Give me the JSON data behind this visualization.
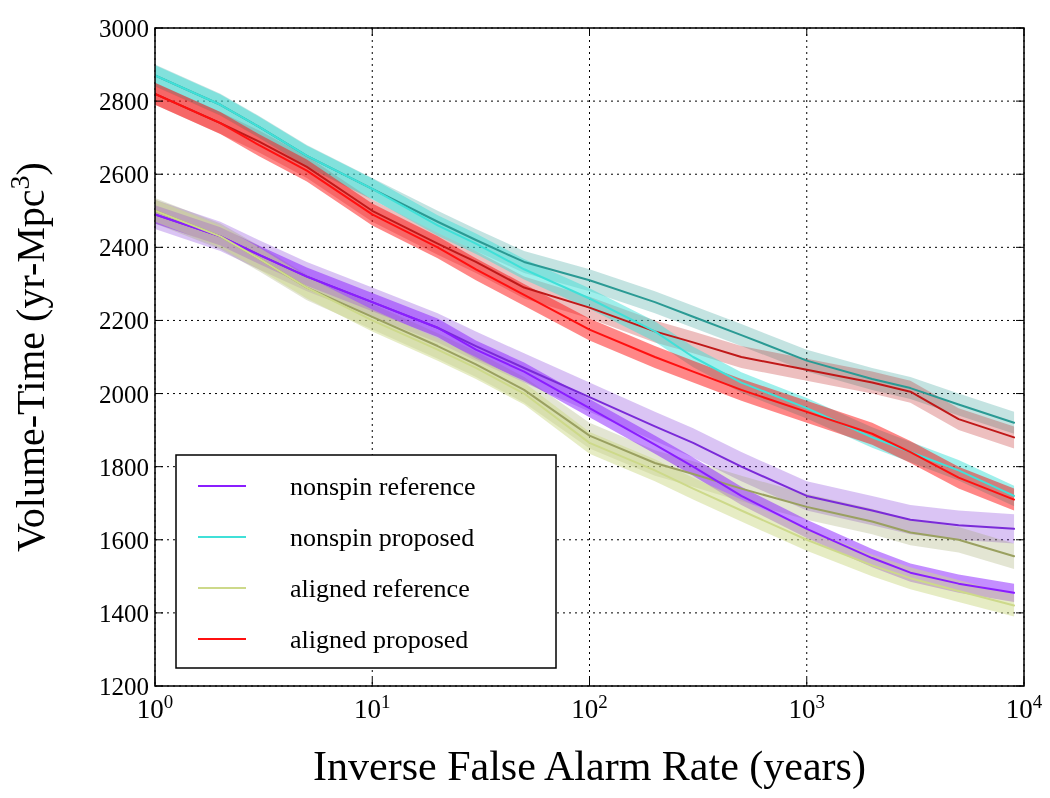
{
  "chart_data": {
    "type": "line",
    "xlabel": "Inverse False Alarm Rate (years)",
    "ylabel": "Volume-Time (yr-Mpc$^{3}$)",
    "log": "x",
    "grid": true,
    "legend": "bottom left",
    "line_style": "solid",
    "xlim": [
      1,
      10000
    ],
    "ylim": [
      1200,
      3000
    ],
    "xticks": [
      {
        "value": 1,
        "label": "10$^{0}$"
      },
      {
        "value": 10,
        "label": "10$^{1}$"
      },
      {
        "value": 100,
        "label": "10$^{2}$"
      },
      {
        "value": 1000,
        "label": "10$^{3}$"
      },
      {
        "value": 10000,
        "label": "10$^{4}$"
      }
    ],
    "yticks": [
      1200,
      1400,
      1600,
      1800,
      2000,
      2200,
      2400,
      2600,
      2800,
      3000
    ],
    "x": [
      1,
      2,
      3,
      5,
      10,
      20,
      30,
      50,
      100,
      200,
      300,
      500,
      1000,
      2000,
      3000,
      5000,
      9000
    ],
    "series": [
      {
        "color": "#7a2ad8",
        "values": [
          2490,
          2430,
          2380,
          2320,
          2250,
          2180,
          2130,
          2070,
          1990,
          1910,
          1865,
          1800,
          1720,
          1680,
          1655,
          1640,
          1630
        ],
        "lower": [
          2450,
          2390,
          2340,
          2280,
          2210,
          2140,
          2090,
          2030,
          1950,
          1870,
          1825,
          1760,
          1680,
          1640,
          1615,
          1600,
          1590
        ],
        "upper": [
          2530,
          2470,
          2420,
          2360,
          2290,
          2220,
          2170,
          2110,
          2030,
          1950,
          1905,
          1840,
          1760,
          1720,
          1695,
          1680,
          1670
        ]
      },
      {
        "color": "#2a9a94",
        "values": [
          2870,
          2790,
          2730,
          2650,
          2560,
          2470,
          2420,
          2360,
          2310,
          2250,
          2210,
          2160,
          2090,
          2040,
          2015,
          1970,
          1920
        ],
        "lower": [
          2840,
          2760,
          2700,
          2620,
          2530,
          2440,
          2390,
          2330,
          2280,
          2220,
          2180,
          2130,
          2060,
          2010,
          1985,
          1940,
          1890
        ],
        "upper": [
          2900,
          2820,
          2760,
          2680,
          2590,
          2500,
          2450,
          2390,
          2340,
          2280,
          2240,
          2190,
          2120,
          2070,
          2045,
          2000,
          1950
        ]
      },
      {
        "color": "#9aa060",
        "values": [
          2500,
          2430,
          2370,
          2290,
          2210,
          2130,
          2080,
          2010,
          1885,
          1810,
          1780,
          1740,
          1690,
          1650,
          1620,
          1600,
          1555
        ],
        "lower": [
          2465,
          2395,
          2335,
          2255,
          2175,
          2095,
          2045,
          1975,
          1850,
          1775,
          1745,
          1705,
          1655,
          1615,
          1585,
          1565,
          1520
        ],
        "upper": [
          2535,
          2465,
          2405,
          2325,
          2245,
          2165,
          2115,
          2045,
          1920,
          1845,
          1815,
          1775,
          1725,
          1685,
          1655,
          1635,
          1590
        ]
      },
      {
        "color": "#c01818",
        "values": [
          2820,
          2740,
          2690,
          2620,
          2500,
          2410,
          2360,
          2290,
          2235,
          2170,
          2140,
          2100,
          2065,
          2030,
          2005,
          1930,
          1880
        ],
        "lower": [
          2790,
          2710,
          2660,
          2590,
          2470,
          2380,
          2330,
          2260,
          2205,
          2140,
          2110,
          2070,
          2035,
          2000,
          1975,
          1900,
          1850
        ],
        "upper": [
          2850,
          2770,
          2720,
          2650,
          2530,
          2440,
          2390,
          2320,
          2265,
          2200,
          2170,
          2130,
          2095,
          2060,
          2035,
          1960,
          1910
        ]
      },
      {
        "name": "nonspin reference",
        "color": "#8a1eff",
        "values": [
          2490,
          2430,
          2380,
          2320,
          2250,
          2180,
          2120,
          2060,
          1960,
          1860,
          1800,
          1720,
          1630,
          1550,
          1510,
          1480,
          1455
        ],
        "lower": [
          2465,
          2405,
          2355,
          2295,
          2225,
          2155,
          2095,
          2035,
          1935,
          1835,
          1775,
          1695,
          1605,
          1525,
          1485,
          1455,
          1430
        ],
        "upper": [
          2515,
          2455,
          2405,
          2345,
          2275,
          2205,
          2145,
          2085,
          1985,
          1885,
          1825,
          1745,
          1655,
          1575,
          1535,
          1505,
          1480
        ]
      },
      {
        "name": "nonspin proposed",
        "color": "#40e0d8",
        "values": [
          2870,
          2790,
          2730,
          2650,
          2560,
          2460,
          2410,
          2340,
          2260,
          2170,
          2100,
          2030,
          1960,
          1880,
          1840,
          1790,
          1720
        ],
        "lower": [
          2842,
          2762,
          2702,
          2622,
          2532,
          2432,
          2382,
          2312,
          2232,
          2142,
          2072,
          2002,
          1932,
          1852,
          1812,
          1762,
          1692
        ],
        "upper": [
          2898,
          2818,
          2758,
          2678,
          2588,
          2488,
          2438,
          2368,
          2288,
          2198,
          2128,
          2058,
          1988,
          1908,
          1868,
          1818,
          1748
        ]
      },
      {
        "name": "aligned reference",
        "color": "#cdd98a",
        "values": [
          2500,
          2430,
          2370,
          2290,
          2200,
          2120,
          2070,
          2000,
          1865,
          1790,
          1740,
          1680,
          1600,
          1530,
          1495,
          1460,
          1420
        ],
        "lower": [
          2470,
          2400,
          2340,
          2260,
          2170,
          2090,
          2040,
          1970,
          1835,
          1760,
          1710,
          1650,
          1570,
          1500,
          1465,
          1430,
          1390
        ],
        "upper": [
          2530,
          2460,
          2400,
          2320,
          2230,
          2150,
          2100,
          2030,
          1895,
          1820,
          1770,
          1710,
          1630,
          1560,
          1525,
          1490,
          1450
        ]
      },
      {
        "name": "aligned proposed",
        "color": "#ff1010",
        "values": [
          2820,
          2740,
          2680,
          2610,
          2490,
          2400,
          2340,
          2270,
          2175,
          2100,
          2060,
          2010,
          1950,
          1890,
          1840,
          1770,
          1710
        ],
        "lower": [
          2790,
          2710,
          2650,
          2580,
          2460,
          2370,
          2310,
          2240,
          2145,
          2070,
          2030,
          1980,
          1920,
          1860,
          1810,
          1740,
          1680
        ],
        "upper": [
          2850,
          2770,
          2710,
          2640,
          2520,
          2430,
          2370,
          2300,
          2205,
          2130,
          2090,
          2040,
          1980,
          1920,
          1870,
          1800,
          1740
        ]
      }
    ]
  }
}
